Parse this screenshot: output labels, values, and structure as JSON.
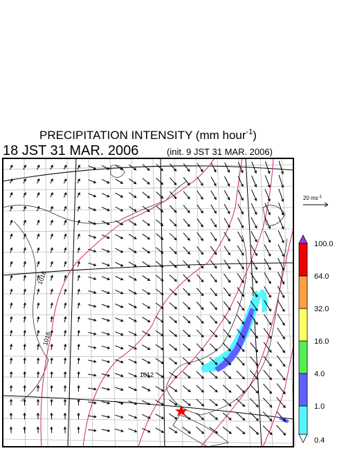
{
  "title": {
    "main": "PRECIPITATION INTENSITY (mm hour",
    "superscript": "-1",
    "close": ")"
  },
  "subtitle": {
    "time": "18 JST 31 MAR. 2006",
    "init": "(init. 9 JST 31 MAR. 2006)"
  },
  "vector_scale": {
    "label": "20 ms",
    "superscript": "-1"
  },
  "colorbar": {
    "levels": [
      "0.4",
      "1.0",
      "4.0",
      "16.0",
      "32.0",
      "64.0",
      "100.0"
    ],
    "colors": [
      "#ffffff",
      "#55f5ff",
      "#6060ff",
      "#55ee55",
      "#ffff66",
      "#ffa040",
      "#ee0000",
      "#b030e0"
    ]
  },
  "contour_labels": [
    "1016",
    "1016",
    "1012"
  ]
}
